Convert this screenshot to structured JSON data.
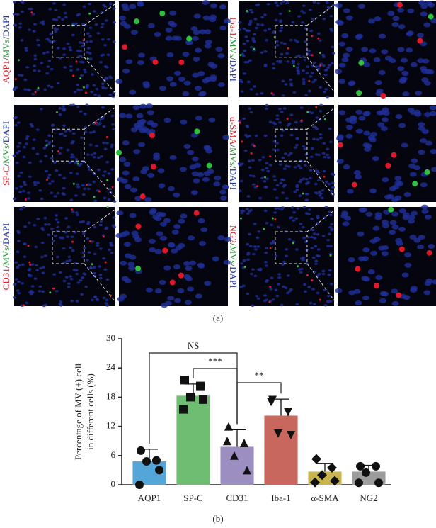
{
  "figure_a": {
    "caption": "(a)",
    "separator": "/",
    "labels": [
      {
        "parts": [
          "AQP1",
          "MVs",
          "DAPI"
        ]
      },
      {
        "parts": [
          "Iba-1",
          "MVs",
          "DAPI"
        ]
      },
      {
        "parts": [
          "SP-C",
          "MVs",
          "DAPI"
        ]
      },
      {
        "parts": [
          "α-SMA",
          "MVs",
          "DAPI"
        ]
      },
      {
        "parts": [
          "CD31",
          "MVs",
          "DAPI"
        ]
      },
      {
        "parts": [
          "NG2",
          "MVs",
          "DAPI"
        ]
      }
    ]
  },
  "chart_data": {
    "type": "bar",
    "caption": "(b)",
    "ylabel": [
      "Percentage of MV (+) cell",
      "in different cells (%)"
    ],
    "categories": [
      "AQP1",
      "SP-C",
      "CD31",
      "Iba-1",
      "α-SMA",
      "NG2"
    ],
    "values": [
      4.8,
      18.3,
      7.8,
      14.2,
      2.7,
      2.7
    ],
    "errors": [
      2.5,
      2.4,
      3.5,
      3.4,
      1.7,
      1.3
    ],
    "points": [
      [
        7.0,
        5.0,
        4.8,
        3.0,
        0
      ],
      [
        21.5,
        20.3,
        18.0,
        17.5,
        15.5
      ],
      [
        12.0,
        8.6,
        6.0,
        3.0,
        9.0
      ],
      [
        17.4,
        14.9,
        10.5,
        10.2,
        17.0
      ],
      [
        5.3,
        3.5,
        2.0,
        0.8,
        0.5
      ],
      [
        3.8,
        3.8,
        2.5,
        0.4,
        0.4
      ]
    ],
    "point_shapes": [
      "circle",
      "square",
      "triangle-up",
      "triangle-down",
      "diamond",
      "circle"
    ],
    "colors": [
      "#55a6d8",
      "#6fbd72",
      "#9d8ec2",
      "#c8675d",
      "#c9b54d",
      "#9c9c9c"
    ],
    "ylim": [
      0,
      30
    ],
    "yticks": [
      0,
      6,
      12,
      18,
      24,
      30
    ],
    "significance": [
      {
        "from": 0,
        "to": 2,
        "label": "NS"
      },
      {
        "from": 1,
        "to": 2,
        "label": "***"
      },
      {
        "from": 2,
        "to": 3,
        "label": "**"
      }
    ]
  }
}
